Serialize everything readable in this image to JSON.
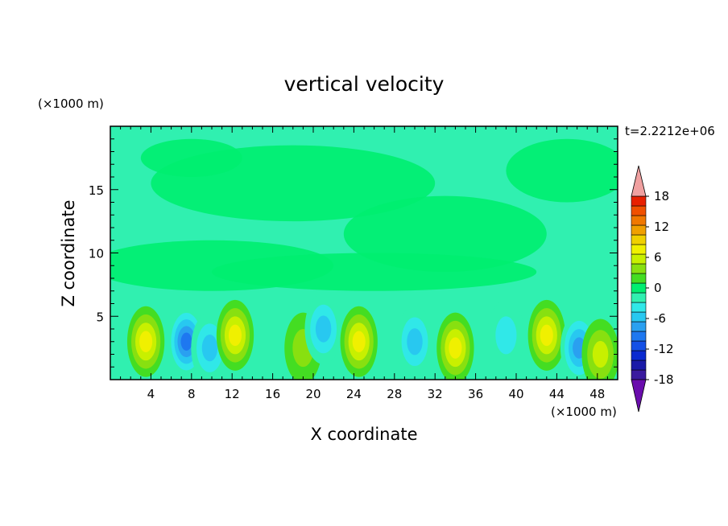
{
  "chart_data": {
    "type": "heatmap",
    "title": "vertical velocity",
    "xlabel": "X coordinate",
    "ylabel": "Z coordinate",
    "x_unit": "(×1000 m)",
    "y_unit": "(×1000 m)",
    "time_label": "t=2.2212e+06",
    "xlim": [
      0,
      50
    ],
    "ylim": [
      0,
      20
    ],
    "x_ticks": [
      4,
      8,
      12,
      16,
      20,
      24,
      28,
      32,
      36,
      40,
      44,
      48
    ],
    "y_ticks": [
      5,
      10,
      15
    ],
    "colorbar": {
      "levels": [
        -20,
        -18,
        -16,
        -14,
        -12,
        -10,
        -8,
        -6,
        -4,
        -2,
        0,
        2,
        4,
        6,
        8,
        10,
        12,
        14,
        16,
        18,
        20
      ],
      "tick_labels": [
        "18",
        "12",
        "6",
        "0",
        "-6",
        "-12",
        "-18"
      ],
      "tick_values": [
        18,
        12,
        6,
        0,
        -6,
        -12,
        -18
      ],
      "colors": [
        "#6a0dad",
        "#3a1a9e",
        "#1a1aa8",
        "#0a2ad0",
        "#1450e6",
        "#1e78f0",
        "#2aa0f0",
        "#28c8f0",
        "#30e8e8",
        "#30f0b0",
        "#00ee70",
        "#44dd22",
        "#88e010",
        "#c8f000",
        "#f0f000",
        "#f0d000",
        "#f0a000",
        "#f07800",
        "#f05000",
        "#e82000",
        "#f0a0a0"
      ],
      "extend": "both"
    },
    "background_colors": [
      "#00ee88",
      "#22dd22"
    ],
    "features": [
      {
        "x": 3.5,
        "z": 3.0,
        "w": -1,
        "peak": 8
      },
      {
        "x": 7.5,
        "z": 3.0,
        "w": 1,
        "peak": -10
      },
      {
        "x": 9.8,
        "z": 2.5,
        "w": 1,
        "peak": -6
      },
      {
        "x": 12.3,
        "z": 3.5,
        "w": -1,
        "peak": 8
      },
      {
        "x": 19.0,
        "z": 2.5,
        "w": -1,
        "peak": 4
      },
      {
        "x": 21.0,
        "z": 4.0,
        "w": 1,
        "peak": -6
      },
      {
        "x": 24.5,
        "z": 3.0,
        "w": -1,
        "peak": 8
      },
      {
        "x": 30.0,
        "z": 3.0,
        "w": 1,
        "peak": -6
      },
      {
        "x": 34.0,
        "z": 2.5,
        "w": -1,
        "peak": 8
      },
      {
        "x": 39.0,
        "z": 3.5,
        "w": 1,
        "peak": -4
      },
      {
        "x": 43.0,
        "z": 3.5,
        "w": -1,
        "peak": 8
      },
      {
        "x": 46.2,
        "z": 2.5,
        "w": 1,
        "peak": -8
      },
      {
        "x": 48.3,
        "z": 2.0,
        "w": -1,
        "peak": 6
      }
    ]
  }
}
